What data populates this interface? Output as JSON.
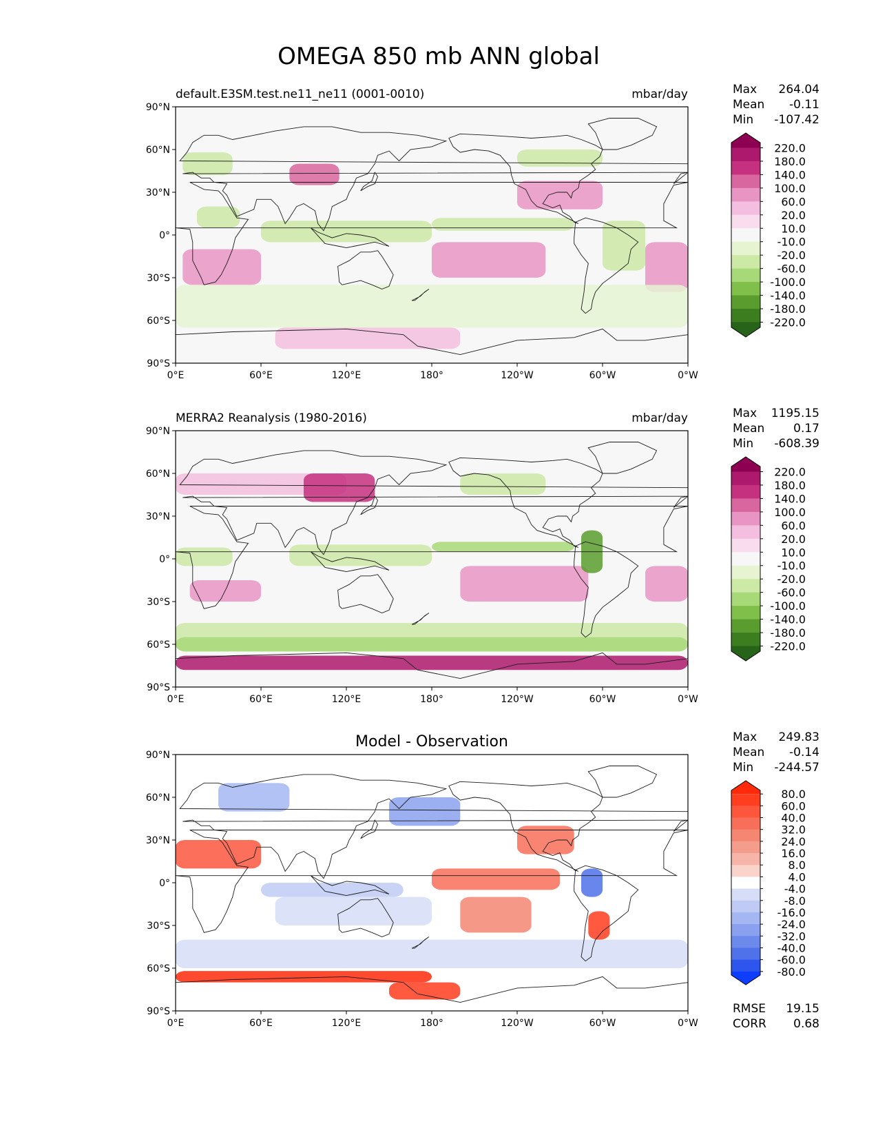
{
  "figure": {
    "title": "OMEGA 850 mb ANN global"
  },
  "axes": {
    "lat_ticks": [
      "90°N",
      "60°N",
      "30°N",
      "0°",
      "30°S",
      "60°S",
      "90°S"
    ],
    "lat_values": [
      90,
      60,
      30,
      0,
      -30,
      -60,
      -90
    ],
    "lon_ticks": [
      "0°E",
      "60°E",
      "120°E",
      "180°",
      "120°W",
      "60°W",
      "0°W"
    ],
    "lon_values": [
      0,
      60,
      120,
      180,
      240,
      300,
      360
    ]
  },
  "chart_data": [
    {
      "type": "heatmap",
      "id": "test",
      "left_title": "default.E3SM.test.ne11_ne11 (0001-0010)",
      "center_title": "",
      "right_title": "mbar/day",
      "stats": [
        {
          "label": "Max",
          "value": "264.04"
        },
        {
          "label": "Mean",
          "value": "-0.11"
        },
        {
          "label": "Min",
          "value": "-107.42"
        }
      ],
      "colorbar": {
        "levels": [
          "220.0",
          "180.0",
          "140.0",
          "100.0",
          "60.0",
          "20.0",
          "10.0",
          "-10.0",
          "-20.0",
          "-60.0",
          "-100.0",
          "-140.0",
          "-180.0",
          "-220.0"
        ],
        "colors": [
          "#8e0152",
          "#ad1a6d",
          "#c5307f",
          "#d9679f",
          "#e995c3",
          "#f3bedf",
          "#f9dced",
          "#f7f7f7",
          "#e6f4d2",
          "#cce9a6",
          "#a8d979",
          "#80bf49",
          "#5a9d2e",
          "#3c7e1f",
          "#276419"
        ]
      },
      "extra_stats": [],
      "xlim": [
        0,
        360
      ],
      "ylim": [
        -90,
        90
      ]
    },
    {
      "type": "heatmap",
      "id": "reference",
      "left_title": "MERRA2 Reanalysis (1980-2016)",
      "center_title": "",
      "right_title": "mbar/day",
      "stats": [
        {
          "label": "Max",
          "value": "1195.15"
        },
        {
          "label": "Mean",
          "value": "0.17"
        },
        {
          "label": "Min",
          "value": "-608.39"
        }
      ],
      "colorbar": {
        "levels": [
          "220.0",
          "180.0",
          "140.0",
          "100.0",
          "60.0",
          "20.0",
          "10.0",
          "-10.0",
          "-20.0",
          "-60.0",
          "-100.0",
          "-140.0",
          "-180.0",
          "-220.0"
        ],
        "colors": [
          "#8e0152",
          "#ad1a6d",
          "#c5307f",
          "#d9679f",
          "#e995c3",
          "#f3bedf",
          "#f9dced",
          "#f7f7f7",
          "#e6f4d2",
          "#cce9a6",
          "#a8d979",
          "#80bf49",
          "#5a9d2e",
          "#3c7e1f",
          "#276419"
        ]
      },
      "extra_stats": [],
      "xlim": [
        0,
        360
      ],
      "ylim": [
        -90,
        90
      ]
    },
    {
      "type": "heatmap",
      "id": "difference",
      "left_title": "",
      "center_title": "Model - Observation",
      "right_title": "",
      "stats": [
        {
          "label": "Max",
          "value": "249.83"
        },
        {
          "label": "Mean",
          "value": "-0.14"
        },
        {
          "label": "Min",
          "value": "-244.57"
        }
      ],
      "colorbar": {
        "levels": [
          "80.0",
          "60.0",
          "40.0",
          "32.0",
          "24.0",
          "16.0",
          "8.0",
          "4.0",
          "-4.0",
          "-8.0",
          "-16.0",
          "-24.0",
          "-32.0",
          "-40.0",
          "-60.0",
          "-80.0"
        ],
        "colors": [
          "#ff2a0a",
          "#ff3d1f",
          "#fc563d",
          "#f76f58",
          "#f48672",
          "#f49d8c",
          "#f6b5a8",
          "#fad3cb",
          "#ffffff",
          "#d6def7",
          "#bfcbf5",
          "#a5b7f2",
          "#8aa1ef",
          "#6c89ec",
          "#4f71ea",
          "#2e55ee",
          "#0d3dff"
        ]
      },
      "extra_stats": [
        {
          "label": "RMSE",
          "value": "19.15"
        },
        {
          "label": "CORR",
          "value": "0.68"
        }
      ],
      "xlim": [
        0,
        360
      ],
      "ylim": [
        -90,
        90
      ]
    }
  ]
}
